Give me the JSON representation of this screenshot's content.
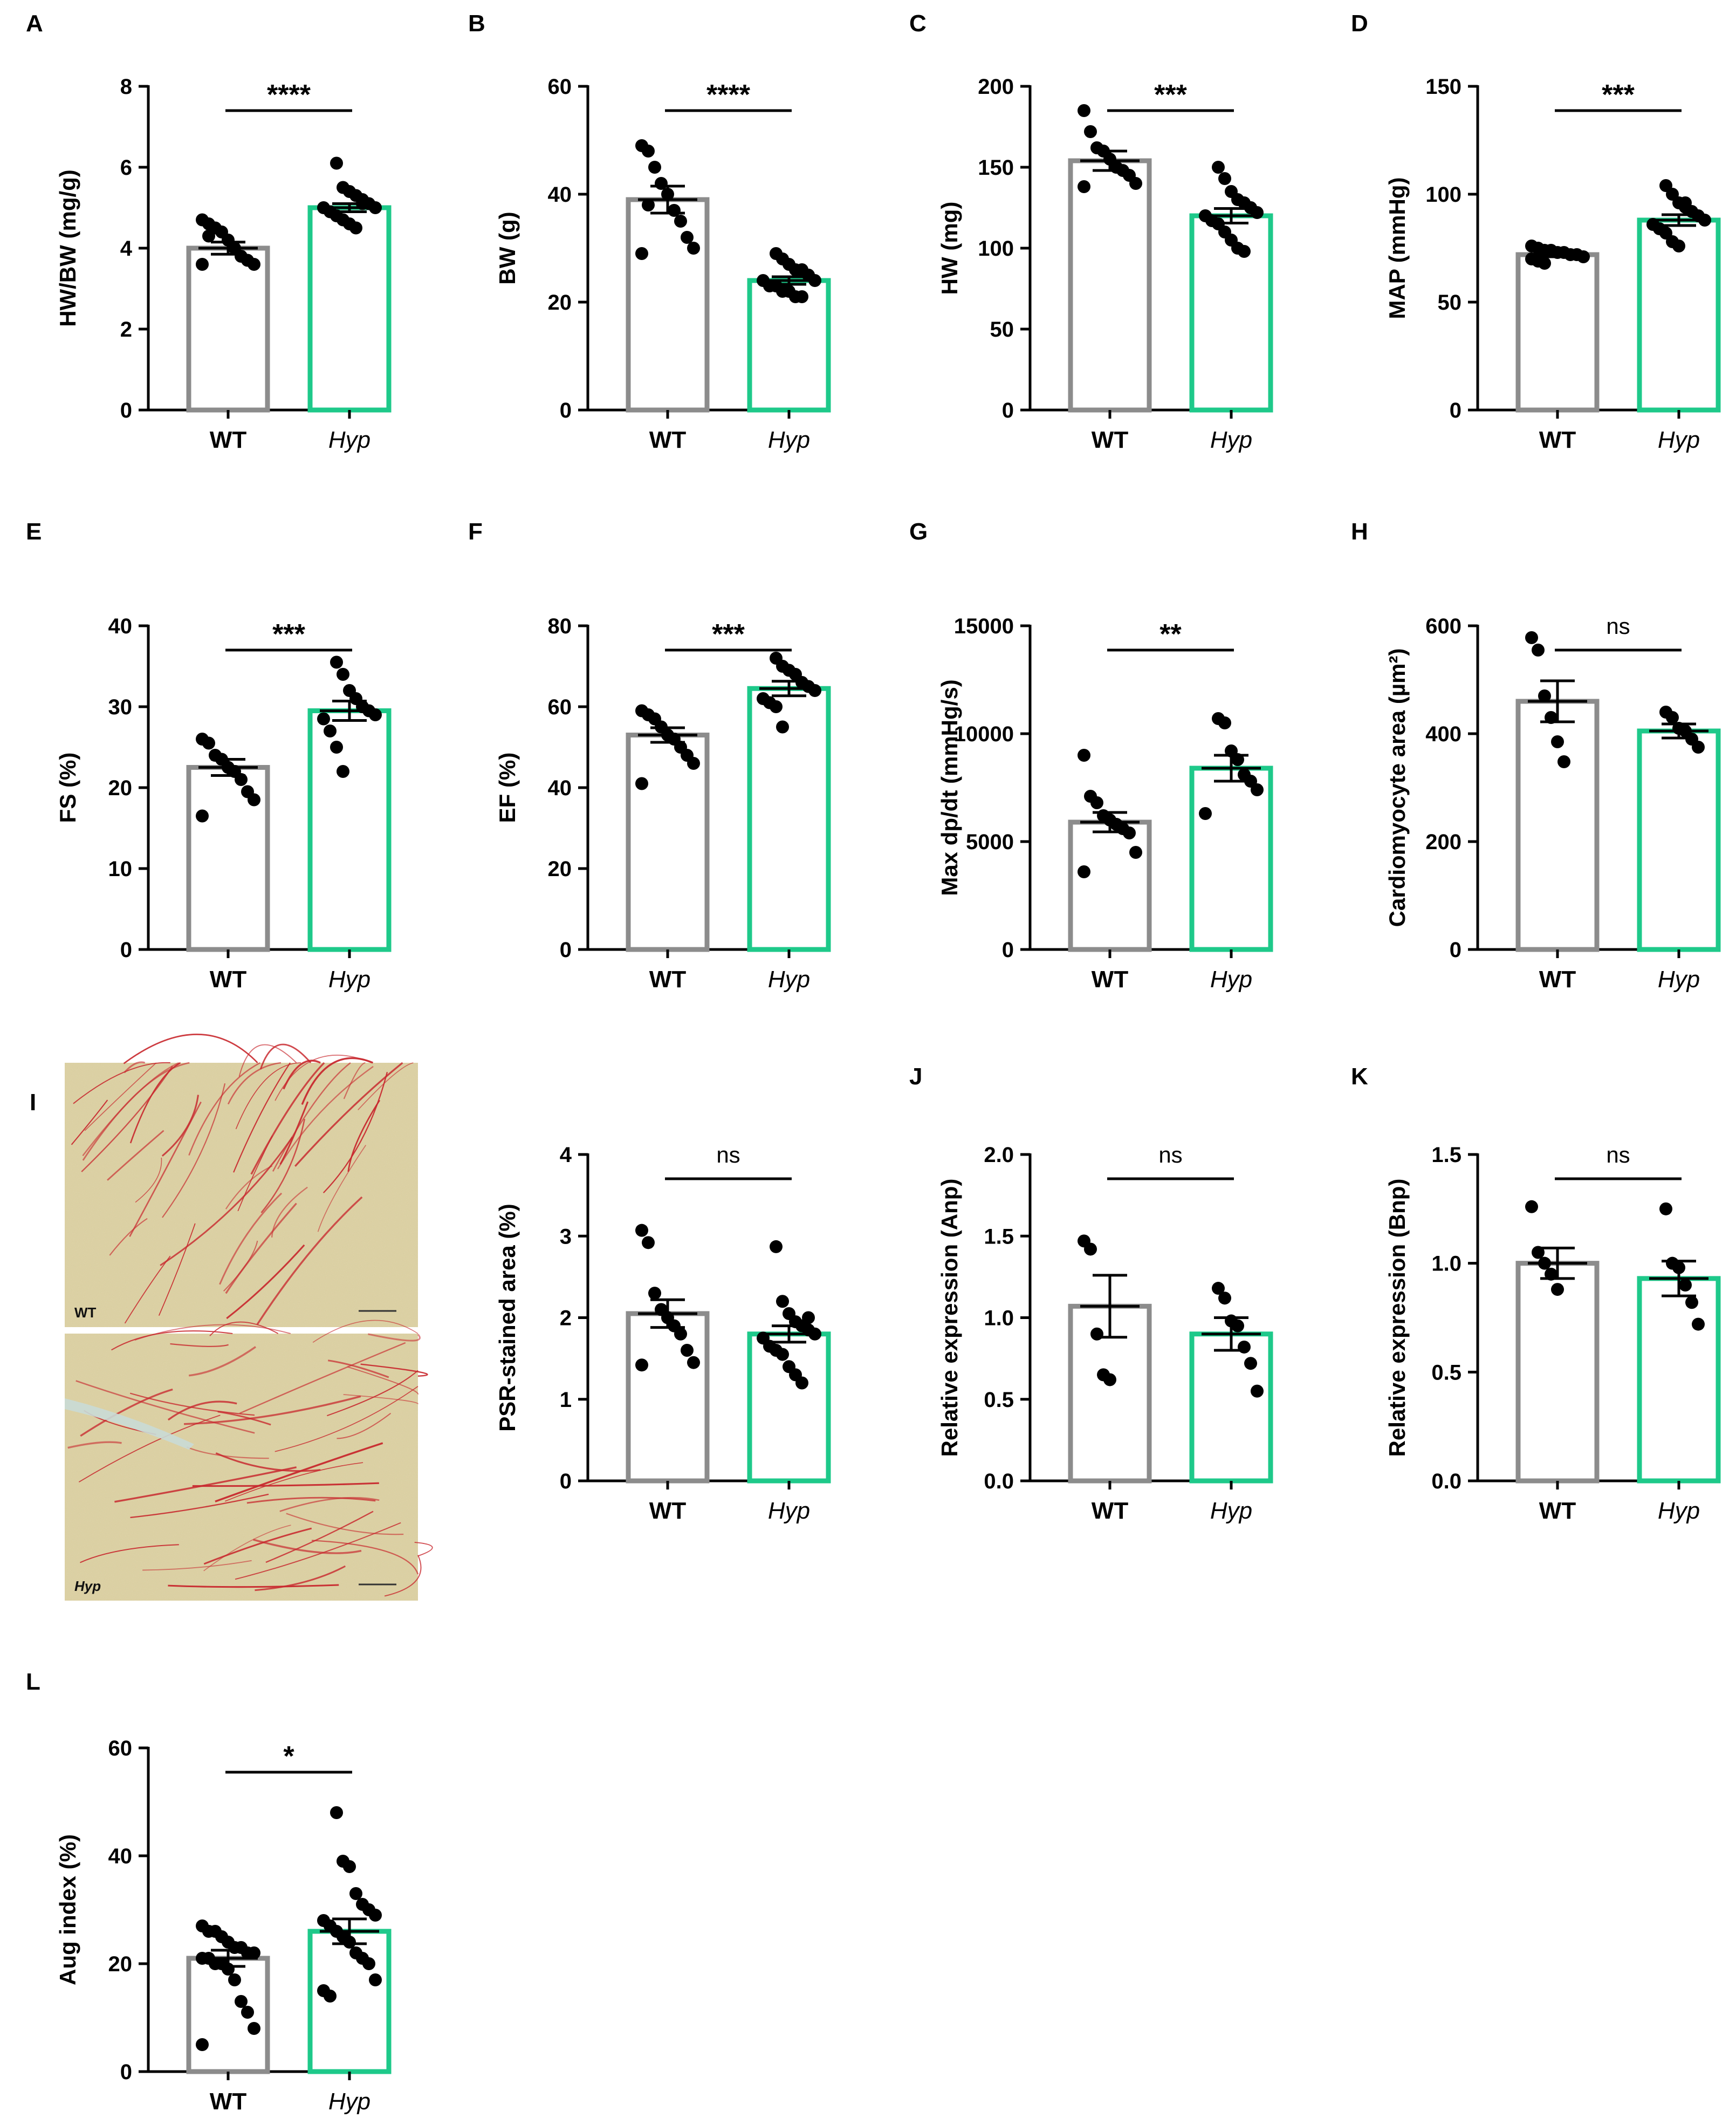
{
  "colors": {
    "wt_bar": "#8c8c8c",
    "hyp_bar": "#1ec98a",
    "dot": "#000000",
    "tissue_bg": "#d8cc9c",
    "collagen": "#c8282e"
  },
  "micrographs": [
    {
      "panel": "I",
      "label": "WT"
    },
    {
      "panel": "I",
      "label": "Hyp"
    }
  ],
  "chart_data": [
    {
      "panel": "A",
      "type": "bar",
      "ylabel": "HW/BW (mg/g)",
      "ylim": [
        0,
        8
      ],
      "yticks": [
        "0",
        "2",
        "4",
        "6",
        "8"
      ],
      "ytick_values": [
        0,
        2,
        4,
        6,
        8
      ],
      "categories": [
        "WT",
        "Hyp"
      ],
      "significance": "****",
      "series": [
        {
          "name": "WT",
          "mean": 4.0,
          "sem": 0.15,
          "points": [
            4.7,
            4.6,
            4.5,
            4.4,
            4.2,
            4.0,
            3.8,
            3.7,
            3.6,
            3.6,
            4.3
          ]
        },
        {
          "name": "Hyp",
          "mean": 5.0,
          "sem": 0.1,
          "points": [
            6.1,
            5.5,
            5.4,
            5.3,
            5.2,
            5.1,
            5.0,
            5.0,
            4.9,
            4.8,
            4.7,
            4.6,
            4.5,
            5.1
          ]
        }
      ]
    },
    {
      "panel": "B",
      "type": "bar",
      "ylabel": "BW (g)",
      "ylim": [
        0,
        60
      ],
      "yticks": [
        "0",
        "20",
        "40",
        "60"
      ],
      "ytick_values": [
        0,
        20,
        40,
        60
      ],
      "categories": [
        "WT",
        "Hyp"
      ],
      "significance": "****",
      "series": [
        {
          "name": "WT",
          "mean": 39,
          "sem": 2.5,
          "points": [
            49,
            48,
            45,
            42,
            40,
            37,
            35,
            32,
            30,
            29,
            38
          ]
        },
        {
          "name": "Hyp",
          "mean": 24,
          "sem": 0.7,
          "points": [
            29,
            28,
            27,
            26,
            26,
            25,
            24,
            24,
            23,
            23,
            22,
            22,
            21,
            21,
            25
          ]
        }
      ]
    },
    {
      "panel": "C",
      "type": "bar",
      "ylabel": "HW (mg)",
      "ylim": [
        0,
        200
      ],
      "yticks": [
        "0",
        "50",
        "100",
        "150",
        "200"
      ],
      "ytick_values": [
        0,
        50,
        100,
        150,
        200
      ],
      "categories": [
        "WT",
        "Hyp"
      ],
      "significance": "***",
      "series": [
        {
          "name": "WT",
          "mean": 154,
          "sem": 6,
          "points": [
            185,
            172,
            162,
            160,
            155,
            150,
            148,
            145,
            140,
            138
          ]
        },
        {
          "name": "Hyp",
          "mean": 120,
          "sem": 4.5,
          "points": [
            150,
            143,
            135,
            130,
            128,
            125,
            122,
            120,
            117,
            115,
            110,
            105,
            100,
            98,
            125
          ]
        }
      ]
    },
    {
      "panel": "D",
      "type": "bar",
      "ylabel": "MAP (mmHg)",
      "ylim": [
        0,
        150
      ],
      "yticks": [
        "0",
        "50",
        "100",
        "150"
      ],
      "ytick_values": [
        0,
        50,
        100,
        150
      ],
      "categories": [
        "WT",
        "Hyp"
      ],
      "significance": "***",
      "series": [
        {
          "name": "WT",
          "mean": 72,
          "sem": 1,
          "points": [
            76,
            75,
            74,
            74,
            73,
            73,
            72,
            72,
            71,
            70,
            69,
            68
          ]
        },
        {
          "name": "Hyp",
          "mean": 88,
          "sem": 2.5,
          "points": [
            104,
            100,
            96,
            94,
            92,
            90,
            88,
            86,
            84,
            82,
            78,
            76,
            96
          ]
        }
      ]
    },
    {
      "panel": "E",
      "type": "bar",
      "ylabel": "FS (%)",
      "ylim": [
        0,
        40
      ],
      "yticks": [
        "0",
        "10",
        "20",
        "30",
        "40"
      ],
      "ytick_values": [
        0,
        10,
        20,
        30,
        40
      ],
      "categories": [
        "WT",
        "Hyp"
      ],
      "significance": "***",
      "series": [
        {
          "name": "WT",
          "mean": 22.5,
          "sem": 1,
          "points": [
            26,
            25.5,
            24,
            23.5,
            22.5,
            22,
            21,
            19.5,
            18.5,
            16.5
          ]
        },
        {
          "name": "Hyp",
          "mean": 29.5,
          "sem": 1.2,
          "points": [
            35.5,
            34,
            32,
            31,
            30,
            29.5,
            29,
            28.5,
            27,
            25,
            22
          ]
        }
      ]
    },
    {
      "panel": "F",
      "type": "bar",
      "ylabel": "EF (%)",
      "ylim": [
        0,
        80
      ],
      "yticks": [
        "0",
        "20",
        "40",
        "60",
        "80"
      ],
      "ytick_values": [
        0,
        20,
        40,
        60,
        80
      ],
      "categories": [
        "WT",
        "Hyp"
      ],
      "significance": "***",
      "series": [
        {
          "name": "WT",
          "mean": 53,
          "sem": 1.8,
          "points": [
            59,
            58,
            57,
            55,
            53,
            52,
            50,
            48,
            46,
            41
          ]
        },
        {
          "name": "Hyp",
          "mean": 64.5,
          "sem": 1.8,
          "points": [
            72,
            70,
            69,
            68,
            66,
            65,
            64,
            62,
            61,
            60,
            55
          ]
        }
      ]
    },
    {
      "panel": "G",
      "type": "bar",
      "ylabel": "Max dp/dt (mmHg/s)",
      "ylim": [
        0,
        15000
      ],
      "yticks": [
        "0",
        "5000",
        "10000",
        "15000"
      ],
      "ytick_values": [
        0,
        5000,
        10000,
        15000
      ],
      "categories": [
        "WT",
        "Hyp"
      ],
      "significance": "**",
      "series": [
        {
          "name": "WT",
          "mean": 5900,
          "sem": 450,
          "points": [
            9000,
            7100,
            6800,
            6200,
            6000,
            5800,
            5600,
            5400,
            4500,
            3600
          ]
        },
        {
          "name": "Hyp",
          "mean": 8400,
          "sem": 600,
          "points": [
            10700,
            10500,
            9200,
            8800,
            8100,
            7800,
            7400,
            6300
          ]
        }
      ]
    },
    {
      "panel": "H",
      "type": "bar",
      "ylabel": "Cardiomyocyte area (µm²)",
      "ylim": [
        0,
        600
      ],
      "yticks": [
        "0",
        "200",
        "400",
        "600"
      ],
      "ytick_values": [
        0,
        200,
        400,
        600
      ],
      "categories": [
        "WT",
        "Hyp"
      ],
      "significance": "ns",
      "series": [
        {
          "name": "WT",
          "mean": 460,
          "sem": 38,
          "points": [
            578,
            555,
            470,
            430,
            385,
            348
          ]
        },
        {
          "name": "Hyp",
          "mean": 405,
          "sem": 13,
          "points": [
            440,
            430,
            410,
            405,
            390,
            375
          ]
        }
      ]
    },
    {
      "panel": "I",
      "type": "bar",
      "ylabel": "PSR-stained area (%)",
      "ylim": [
        0,
        4
      ],
      "yticks": [
        "0",
        "1",
        "2",
        "3",
        "4"
      ],
      "ytick_values": [
        0,
        1,
        2,
        3,
        4
      ],
      "categories": [
        "WT",
        "Hyp"
      ],
      "significance": "ns",
      "series": [
        {
          "name": "WT",
          "mean": 2.05,
          "sem": 0.17,
          "points": [
            3.07,
            2.92,
            2.3,
            2.1,
            2.0,
            1.9,
            1.8,
            1.6,
            1.45,
            1.42
          ]
        },
        {
          "name": "Hyp",
          "mean": 1.8,
          "sem": 0.1,
          "points": [
            2.87,
            2.2,
            2.05,
            1.95,
            1.9,
            1.85,
            1.8,
            1.75,
            1.65,
            1.6,
            1.55,
            1.4,
            1.3,
            1.2,
            2.0
          ]
        }
      ]
    },
    {
      "panel": "J",
      "type": "bar",
      "ylabel": "Relative expression (Anp)",
      "ylim": [
        0,
        2.0
      ],
      "yticks": [
        "0.0",
        "0.5",
        "1.0",
        "1.5",
        "2.0"
      ],
      "ytick_values": [
        0,
        0.5,
        1.0,
        1.5,
        2.0
      ],
      "categories": [
        "WT",
        "Hyp"
      ],
      "significance": "ns",
      "series": [
        {
          "name": "WT",
          "mean": 1.07,
          "sem": 0.19,
          "points": [
            1.47,
            1.42,
            0.9,
            0.65,
            0.62
          ]
        },
        {
          "name": "Hyp",
          "mean": 0.9,
          "sem": 0.1,
          "points": [
            1.18,
            1.12,
            0.98,
            0.95,
            0.82,
            0.72,
            0.55
          ]
        }
      ]
    },
    {
      "panel": "K",
      "type": "bar",
      "ylabel": "Relative expression (Bnp)",
      "ylim": [
        0,
        1.5
      ],
      "yticks": [
        "0.0",
        "0.5",
        "1.0",
        "1.5"
      ],
      "ytick_values": [
        0,
        0.5,
        1.0,
        1.5
      ],
      "categories": [
        "WT",
        "Hyp"
      ],
      "significance": "ns",
      "series": [
        {
          "name": "WT",
          "mean": 1.0,
          "sem": 0.07,
          "points": [
            1.26,
            1.05,
            1.0,
            0.95,
            0.88
          ]
        },
        {
          "name": "Hyp",
          "mean": 0.93,
          "sem": 0.08,
          "points": [
            1.25,
            1.0,
            0.98,
            0.9,
            0.82,
            0.72
          ]
        }
      ]
    },
    {
      "panel": "L",
      "type": "bar",
      "ylabel": "Aug index (%)",
      "ylim": [
        0,
        60
      ],
      "yticks": [
        "0",
        "20",
        "40",
        "60"
      ],
      "ytick_values": [
        0,
        20,
        40,
        60
      ],
      "categories": [
        "WT",
        "Hyp"
      ],
      "significance": "*",
      "series": [
        {
          "name": "WT",
          "mean": 21,
          "sem": 1.5,
          "points": [
            27,
            26,
            26,
            25,
            24,
            23,
            23,
            22,
            22,
            21,
            21,
            20,
            20,
            19,
            17,
            13,
            11,
            8,
            5
          ]
        },
        {
          "name": "Hyp",
          "mean": 26,
          "sem": 2.3,
          "points": [
            48,
            39,
            38,
            33,
            31,
            30,
            29,
            28,
            27,
            26,
            25,
            24,
            22,
            21,
            20,
            17,
            15,
            14
          ]
        }
      ]
    }
  ]
}
